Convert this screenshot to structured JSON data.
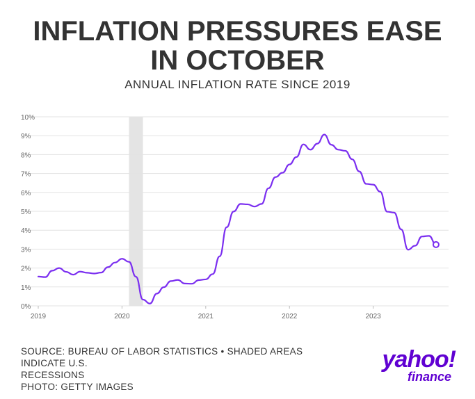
{
  "header": {
    "title_line1": "INFLATION PRESSURES EASE",
    "title_line2": "IN OCTOBER",
    "subtitle": "ANNUAL INFLATION RATE SINCE 2019"
  },
  "footer": {
    "source_line1": "SOURCE: BUREAU OF LABOR STATISTICS • SHADED AREAS INDICATE U.S.",
    "source_line2": "RECESSIONS",
    "photo_credit": "PHOTO: GETTY IMAGES"
  },
  "logo": {
    "main": "yahoo!",
    "sub": "finance"
  },
  "colors": {
    "line": "#7b2ff0",
    "grid": "#e3e3e3",
    "recession": "#d9d9d9",
    "text": "#333333",
    "brand": "#6001d2"
  },
  "chart_data": {
    "type": "line",
    "x_ticks": [
      "2019",
      "2020",
      "2021",
      "2022",
      "2023"
    ],
    "y_ticks": [
      "0%",
      "1%",
      "2%",
      "3%",
      "4%",
      "5%",
      "6%",
      "7%",
      "8%",
      "9%",
      "10%"
    ],
    "ylim": [
      0,
      10
    ],
    "grid": true,
    "recession": {
      "start": "2020-02",
      "end": "2020-04"
    },
    "last_point_marker": true,
    "series": [
      {
        "x": [
          "2019-01",
          "2019-02",
          "2019-03",
          "2019-04",
          "2019-05",
          "2019-06",
          "2019-07",
          "2019-08",
          "2019-09",
          "2019-10",
          "2019-11",
          "2019-12",
          "2020-01",
          "2020-02",
          "2020-03",
          "2020-04",
          "2020-05",
          "2020-06",
          "2020-07",
          "2020-08",
          "2020-09",
          "2020-10",
          "2020-11",
          "2020-12",
          "2021-01",
          "2021-02",
          "2021-03",
          "2021-04",
          "2021-05",
          "2021-06",
          "2021-07",
          "2021-08",
          "2021-09",
          "2021-10",
          "2021-11",
          "2021-12",
          "2022-01",
          "2022-02",
          "2022-03",
          "2022-04",
          "2022-05",
          "2022-06",
          "2022-07",
          "2022-08",
          "2022-09",
          "2022-10",
          "2022-11",
          "2022-12",
          "2023-01",
          "2023-02",
          "2023-03",
          "2023-04",
          "2023-05",
          "2023-06",
          "2023-07",
          "2023-08",
          "2023-09",
          "2023-10"
        ],
        "values": [
          1.55,
          1.52,
          1.86,
          2.0,
          1.8,
          1.65,
          1.81,
          1.75,
          1.71,
          1.76,
          2.05,
          2.29,
          2.49,
          2.33,
          1.54,
          0.33,
          0.12,
          0.65,
          0.99,
          1.31,
          1.37,
          1.18,
          1.17,
          1.36,
          1.4,
          1.68,
          2.62,
          4.16,
          4.99,
          5.39,
          5.37,
          5.25,
          5.39,
          6.22,
          6.81,
          7.04,
          7.48,
          7.87,
          8.54,
          8.26,
          8.58,
          9.06,
          8.52,
          8.26,
          8.2,
          7.75,
          7.11,
          6.45,
          6.41,
          6.04,
          4.98,
          4.93,
          4.05,
          2.97,
          3.18,
          3.67,
          3.7,
          3.24
        ]
      }
    ]
  }
}
